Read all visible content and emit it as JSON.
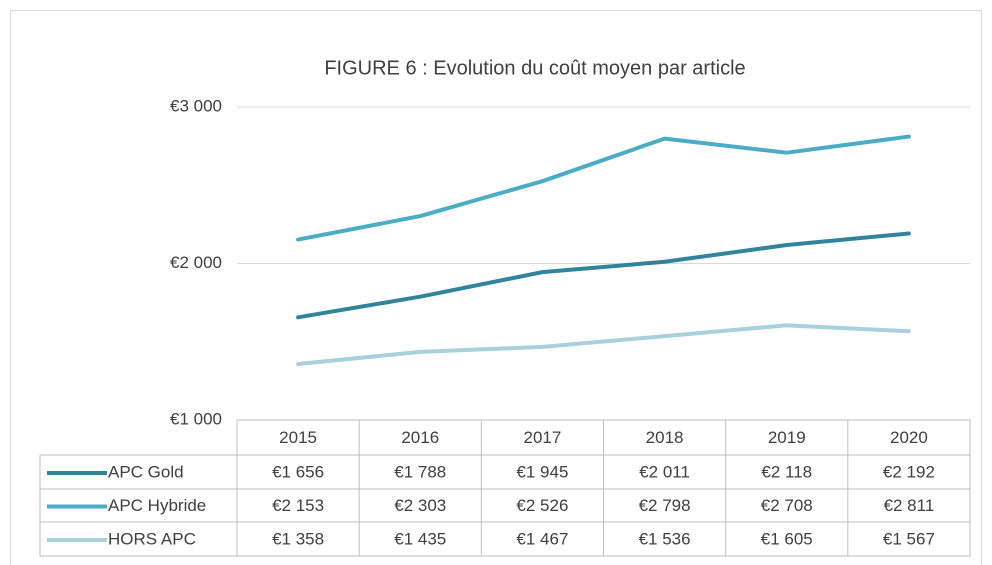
{
  "chart_data": {
    "type": "line",
    "title": "FIGURE 6 : Evolution du coût moyen par article",
    "categories": [
      "2015",
      "2016",
      "2017",
      "2018",
      "2019",
      "2020"
    ],
    "series": [
      {
        "name": "APC Gold",
        "color": "#31849b",
        "values": [
          1656,
          1788,
          1945,
          2011,
          2118,
          2192
        ],
        "value_labels": [
          "€1 656",
          "€1 788",
          "€1 945",
          "€2 011",
          "€2 118",
          "€2 192"
        ]
      },
      {
        "name": "APC Hybride",
        "color": "#4bacc6",
        "values": [
          2153,
          2303,
          2526,
          2798,
          2708,
          2811
        ],
        "value_labels": [
          "€2 153",
          "€2 303",
          "€2 526",
          "€2 798",
          "€2 708",
          "€2 811"
        ]
      },
      {
        "name": "HORS APC",
        "color": "#a9d1dd",
        "values": [
          1358,
          1435,
          1467,
          1536,
          1605,
          1567
        ],
        "value_labels": [
          "€1 358",
          "€1 435",
          "€1 467",
          "€1 536",
          "€1 605",
          "€1 567"
        ]
      }
    ],
    "ylim": [
      1000,
      3000
    ],
    "yticks": [
      {
        "value": 1000,
        "label": "€1 000"
      },
      {
        "value": 2000,
        "label": "€2 000"
      },
      {
        "value": 3000,
        "label": "€3 000"
      }
    ],
    "grid": true
  }
}
